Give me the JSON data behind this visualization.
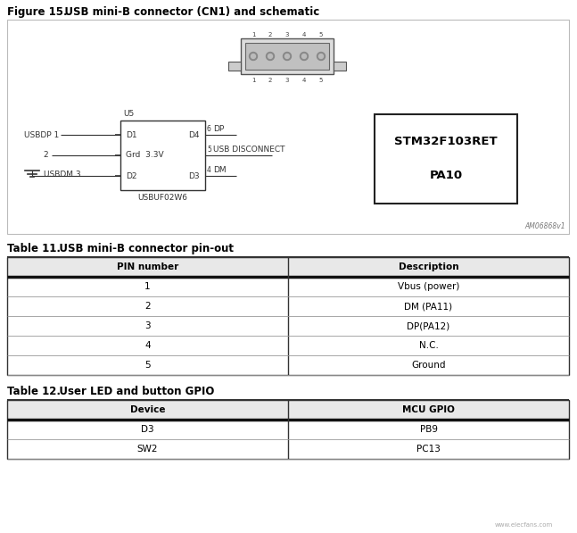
{
  "bg_color": "#ffffff",
  "fig_title_bold": "Figure 15.",
  "fig_title_rest": "   USB mini-B connector (CN1) and schematic",
  "table11_title_bold": "Table 11.",
  "table11_title_rest": "   USB mini-B connector pin-out",
  "table12_title_bold": "Table 12.",
  "table12_title_rest": "   User LED and button GPIO",
  "table11_headers": [
    "PIN number",
    "Description"
  ],
  "table11_rows": [
    [
      "1",
      "Vbus (power)"
    ],
    [
      "2",
      "DM (PA11)"
    ],
    [
      "3",
      "DP(PA12)"
    ],
    [
      "4",
      "N.C."
    ],
    [
      "5",
      "Ground"
    ]
  ],
  "table12_headers": [
    "Device",
    "MCU GPIO"
  ],
  "table12_rows": [
    [
      "D3",
      "PB9"
    ],
    [
      "SW2",
      "PC13"
    ]
  ],
  "watermark": "AM06868v1",
  "elecfans_url": "www.elecfans.com",
  "line_color": "#333333",
  "header_bg": "#e8e8e8",
  "table_border": "#222222",
  "row_sep_color": "#999999"
}
